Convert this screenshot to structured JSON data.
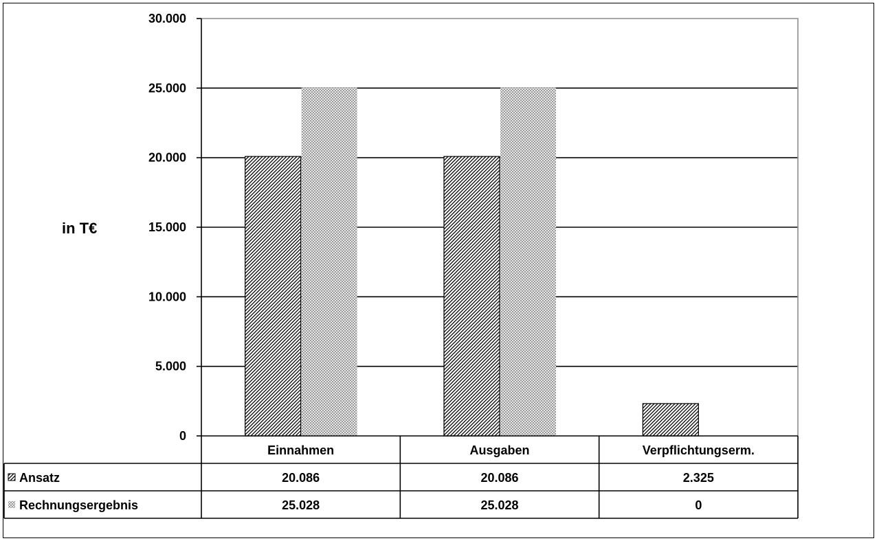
{
  "chart_data": {
    "type": "bar",
    "title": "",
    "xlabel": "",
    "ylabel": "in T€",
    "ylim": [
      0,
      30000
    ],
    "yticks": [
      0,
      5000,
      10000,
      15000,
      20000,
      25000,
      30000
    ],
    "ytick_labels": [
      "0",
      "5.000",
      "10.000",
      "15.000",
      "20.000",
      "25.000",
      "30.000"
    ],
    "grid": true,
    "legend": "data-table",
    "categories": [
      "Einnahmen",
      "Ausgaben",
      "Verpflichtungserm."
    ],
    "series": [
      {
        "name": "Ansatz",
        "values": [
          20086,
          20086,
          2325
        ],
        "value_labels": [
          "20.086",
          "20.086",
          "2.325"
        ],
        "pattern": "diagonal-hatch",
        "color": "#000000"
      },
      {
        "name": "Rechnungsergebnis",
        "values": [
          25028,
          25028,
          0
        ],
        "value_labels": [
          "25.028",
          "25.028",
          "0"
        ],
        "pattern": "crosshatch",
        "color": "#8c8c8c"
      }
    ]
  }
}
